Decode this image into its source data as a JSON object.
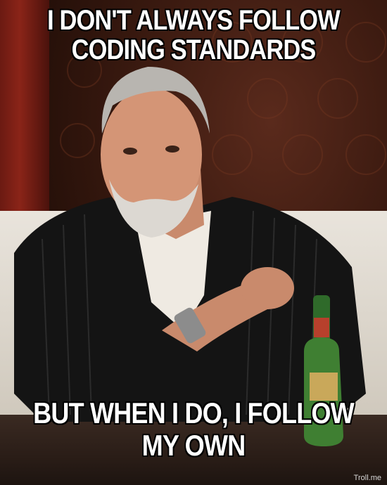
{
  "meme": {
    "top_text": [
      "I DON'T ALWAYS FOLLOW",
      "CODING STANDARDS"
    ],
    "bottom_text": [
      "BUT WHEN I DO, I FOLLOW",
      "MY OWN"
    ],
    "watermark": "Troll.me"
  }
}
